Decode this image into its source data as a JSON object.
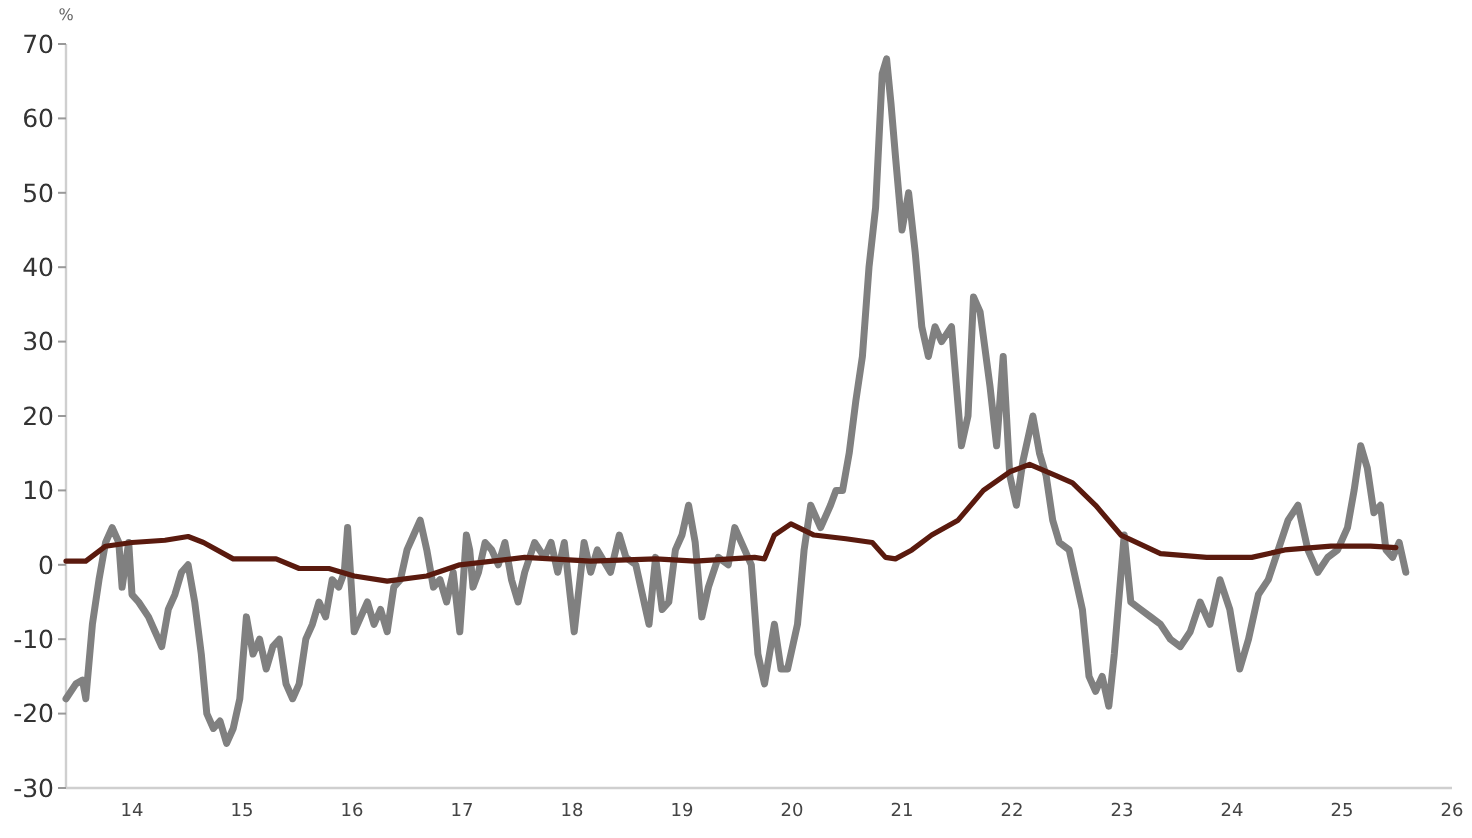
{
  "chart_data": {
    "type": "line",
    "ylabel": "%",
    "xlim": [
      13.4,
      26
    ],
    "xticks": [
      14,
      15,
      16,
      17,
      18,
      19,
      20,
      21,
      22,
      23,
      24,
      25,
      26
    ],
    "ylim": [
      -30,
      70
    ],
    "yticks": [
      -30,
      -20,
      -10,
      0,
      10,
      20,
      30,
      40,
      50,
      60,
      70
    ],
    "grid": false,
    "marker": "none",
    "line_style": "solid",
    "series": [
      {
        "color": "#808080",
        "x": [
          13.4,
          13.49,
          13.55,
          13.58,
          13.64,
          13.7,
          13.76,
          13.82,
          13.88,
          13.91,
          13.97,
          14.0,
          14.06,
          14.15,
          14.21,
          14.27,
          14.33,
          14.39,
          14.45,
          14.51,
          14.57,
          14.63,
          14.68,
          14.74,
          14.8,
          14.86,
          14.92,
          14.98,
          15.04,
          15.1,
          15.16,
          15.22,
          15.28,
          15.34,
          15.4,
          15.46,
          15.52,
          15.58,
          15.64,
          15.7,
          15.76,
          15.82,
          15.88,
          15.93,
          15.96,
          16.02,
          16.08,
          16.14,
          16.2,
          16.26,
          16.32,
          16.38,
          16.44,
          16.5,
          16.56,
          16.62,
          16.68,
          16.74,
          16.8,
          16.86,
          16.92,
          16.98,
          17.04,
          17.07,
          17.1,
          17.15,
          17.21,
          17.27,
          17.33,
          17.39,
          17.45,
          17.51,
          17.57,
          17.66,
          17.75,
          17.81,
          17.87,
          17.93,
          18.02,
          18.11,
          18.17,
          18.23,
          18.35,
          18.43,
          18.49,
          18.58,
          18.67,
          18.7,
          18.76,
          18.82,
          18.88,
          18.94,
          19.0,
          19.06,
          19.12,
          19.18,
          19.24,
          19.33,
          19.42,
          19.48,
          19.57,
          19.63,
          19.69,
          19.75,
          19.84,
          19.9,
          19.96,
          20.05,
          20.11,
          20.17,
          20.26,
          20.35,
          20.4,
          20.46,
          20.52,
          20.58,
          20.64,
          20.7,
          20.76,
          20.82,
          20.86,
          20.9,
          20.94,
          21.0,
          21.06,
          21.12,
          21.18,
          21.24,
          21.3,
          21.36,
          21.45,
          21.54,
          21.6,
          21.65,
          21.71,
          21.8,
          21.86,
          21.92,
          21.98,
          22.04,
          22.1,
          22.19,
          22.25,
          22.31,
          22.37,
          22.43,
          22.52,
          22.58,
          22.64,
          22.7,
          22.76,
          22.82,
          22.88,
          22.93,
          23.02,
          23.08,
          23.17,
          23.26,
          23.35,
          23.44,
          23.53,
          23.62,
          23.71,
          23.8,
          23.89,
          23.98,
          24.07,
          24.15,
          24.24,
          24.33,
          24.42,
          24.51,
          24.6,
          24.69,
          24.78,
          24.87,
          24.96,
          25.05,
          25.11,
          25.17,
          25.23,
          25.29,
          25.35,
          25.4,
          25.46,
          25.52,
          25.58
        ],
        "values": [
          -18,
          -16,
          -15.5,
          -18,
          -8,
          -2,
          3,
          5,
          3,
          -3,
          3,
          -4,
          -5,
          -7,
          -9,
          -11,
          -6,
          -4,
          -1,
          0,
          -5,
          -12,
          -20,
          -22,
          -21,
          -24,
          -22,
          -18,
          -7,
          -12,
          -10,
          -14,
          -11,
          -10,
          -16,
          -18,
          -16,
          -10,
          -8,
          -5,
          -7,
          -2,
          -3,
          -1,
          5,
          -9,
          -7,
          -5,
          -8,
          -6,
          -9,
          -3,
          -2,
          2,
          4,
          6,
          2,
          -3,
          -2,
          -5,
          -1,
          -9,
          4,
          2,
          -3,
          -1,
          3,
          2,
          0,
          3,
          -2,
          -5,
          -1,
          3,
          1,
          3,
          -1,
          3,
          -9,
          3,
          -1,
          2,
          -1,
          4,
          1,
          0,
          -6,
          -8,
          1,
          -6,
          -5,
          2,
          4,
          8,
          3,
          -7,
          -3,
          1,
          0,
          5,
          2,
          0,
          -12,
          -16,
          -8,
          -14,
          -14,
          -8,
          2,
          8,
          5,
          8,
          10,
          10,
          15,
          22,
          28,
          40,
          48,
          66,
          68,
          62,
          55,
          45,
          50,
          42,
          32,
          28,
          32,
          30,
          32,
          16,
          20,
          36,
          34,
          24,
          16,
          28,
          12,
          8,
          14,
          20,
          15,
          12,
          6,
          3,
          2,
          -2,
          -6,
          -15,
          -17,
          -15,
          -19,
          -12,
          4,
          -5,
          -6,
          -7,
          -8,
          -10,
          -11,
          -9,
          -5,
          -8,
          -2,
          -6,
          -14,
          -10,
          -4,
          -2,
          2,
          6,
          8,
          2,
          -1,
          1,
          2,
          5,
          10,
          16,
          13,
          7,
          8,
          2,
          1,
          3,
          -1
        ]
      },
      {
        "color": "#5a1a0e",
        "x": [
          13.4,
          13.58,
          13.76,
          14.0,
          14.3,
          14.51,
          14.65,
          14.92,
          15.31,
          15.52,
          15.79,
          16.02,
          16.32,
          16.68,
          16.98,
          17.57,
          18.17,
          18.76,
          19.12,
          19.66,
          19.75,
          19.84,
          19.99,
          20.2,
          20.49,
          20.73,
          20.85,
          20.94,
          21.09,
          21.27,
          21.51,
          21.74,
          21.98,
          22.16,
          22.4,
          22.55,
          22.76,
          22.99,
          23.35,
          23.77,
          24.18,
          24.48,
          24.9,
          25.26,
          25.49
        ],
        "values": [
          0.5,
          0.5,
          2.5,
          3,
          3.3,
          3.8,
          3,
          0.8,
          0.8,
          -0.5,
          -0.5,
          -1.5,
          -2.2,
          -1.5,
          0,
          1,
          0.5,
          0.8,
          0.5,
          1,
          0.8,
          4,
          5.5,
          4,
          3.5,
          3,
          1,
          0.8,
          2,
          4,
          6,
          10,
          12.5,
          13.5,
          12,
          11,
          8,
          4,
          1.5,
          1,
          1,
          2,
          2.5,
          2.5,
          2.3
        ]
      }
    ]
  }
}
